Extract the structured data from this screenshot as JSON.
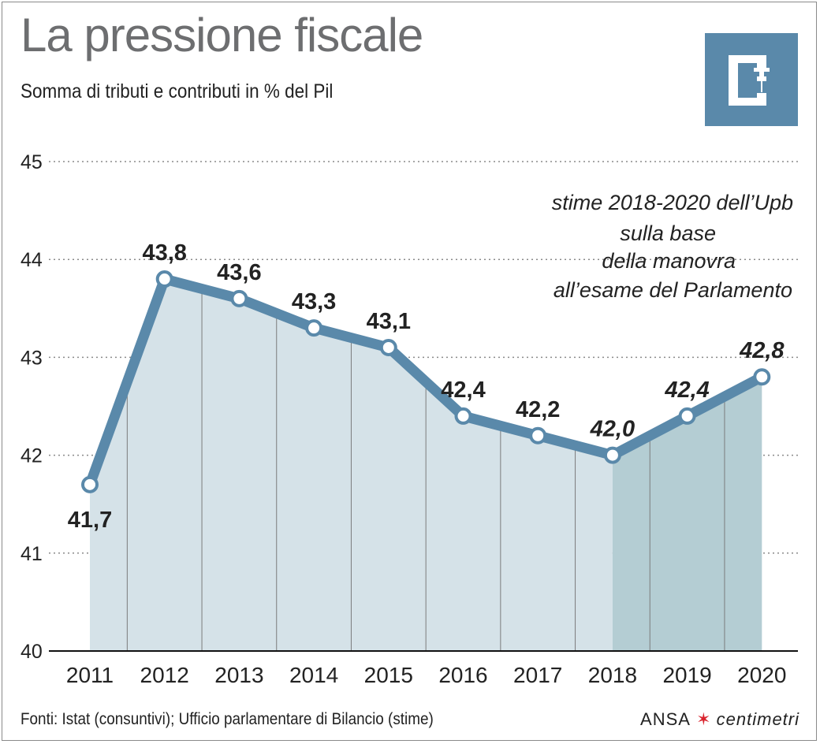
{
  "title": "La pressione fiscale",
  "subtitle": "Somma di tributi e contributi in % del Pil",
  "source": "Fonti: Istat (consuntivi); Ufficio parlamentare di Bilancio (stime)",
  "brand": {
    "ansa": "ANSA",
    "centimetri": "centimetri"
  },
  "logo_icon": "clamp-icon",
  "colors": {
    "line": "#5a89aa",
    "area": "#d5e2e8",
    "area_estimate": "#b4cdd3",
    "text": "#222222",
    "title": "#6d6e70",
    "grid": "#8a8a8a"
  },
  "chart_data": {
    "type": "area",
    "categories": [
      "2011",
      "2012",
      "2013",
      "2014",
      "2015",
      "2016",
      "2017",
      "2018",
      "2019",
      "2020"
    ],
    "values": [
      41.7,
      43.8,
      43.6,
      43.3,
      43.1,
      42.4,
      42.2,
      42.0,
      42.4,
      42.8
    ],
    "value_labels": [
      "41,7",
      "43,8",
      "43,6",
      "43,3",
      "43,1",
      "42,4",
      "42,2",
      "42,0",
      "42,4",
      "42,8"
    ],
    "estimate_from_index": 7,
    "y_ticks": [
      "40",
      "41",
      "42",
      "43",
      "44",
      "45"
    ],
    "ylim": [
      40,
      45
    ],
    "grid": true,
    "annotation": [
      "stime 2018-2020 dell’Upb",
      "sulla base",
      "della manovra",
      "all’esame del Parlamento"
    ]
  }
}
